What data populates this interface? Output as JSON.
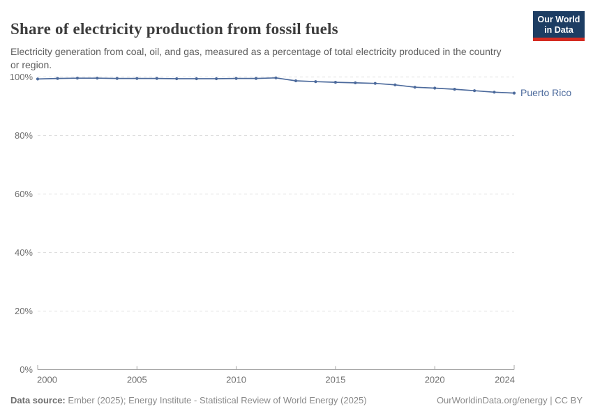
{
  "chart_data": {
    "type": "line",
    "title": "Share of electricity production from fossil fuels",
    "subtitle": "Electricity generation from coal, oil, and gas, measured as a percentage of total electricity produced in the country or region.",
    "unit": "%",
    "xlim": [
      2000,
      2024
    ],
    "ylim": [
      0,
      100
    ],
    "x_ticks": [
      2000,
      2005,
      2010,
      2015,
      2020,
      2024
    ],
    "x_tick_labels": [
      "2000",
      "2005",
      "2010",
      "2015",
      "2020",
      "2024"
    ],
    "y_ticks": [
      0,
      20,
      40,
      60,
      80,
      100
    ],
    "y_tick_labels": [
      "0%",
      "20%",
      "40%",
      "60%",
      "80%",
      "100%"
    ],
    "grid": "horizontal-dashed",
    "legend_position": "line-end-label",
    "series": [
      {
        "name": "Puerto Rico",
        "color": "#4c6a9c",
        "x": [
          2000,
          2001,
          2002,
          2003,
          2004,
          2005,
          2006,
          2007,
          2008,
          2009,
          2010,
          2011,
          2012,
          2013,
          2014,
          2015,
          2016,
          2017,
          2018,
          2019,
          2020,
          2021,
          2022,
          2023,
          2024
        ],
        "values": [
          99.3,
          99.5,
          99.6,
          99.6,
          99.5,
          99.5,
          99.5,
          99.4,
          99.4,
          99.4,
          99.5,
          99.5,
          99.7,
          98.7,
          98.4,
          98.2,
          98.0,
          97.8,
          97.3,
          96.5,
          96.2,
          95.8,
          95.3,
          94.8,
          94.5
        ]
      }
    ]
  },
  "logo": {
    "line1": "Our World",
    "line2": "in Data",
    "bg_color": "#1d3d63",
    "accent_color": "#d42b21"
  },
  "footer": {
    "source_label": "Data source:",
    "source_text": "Ember (2025); Energy Institute - Statistical Review of World Energy (2025)",
    "credit": "OurWorldinData.org/energy | CC BY"
  }
}
